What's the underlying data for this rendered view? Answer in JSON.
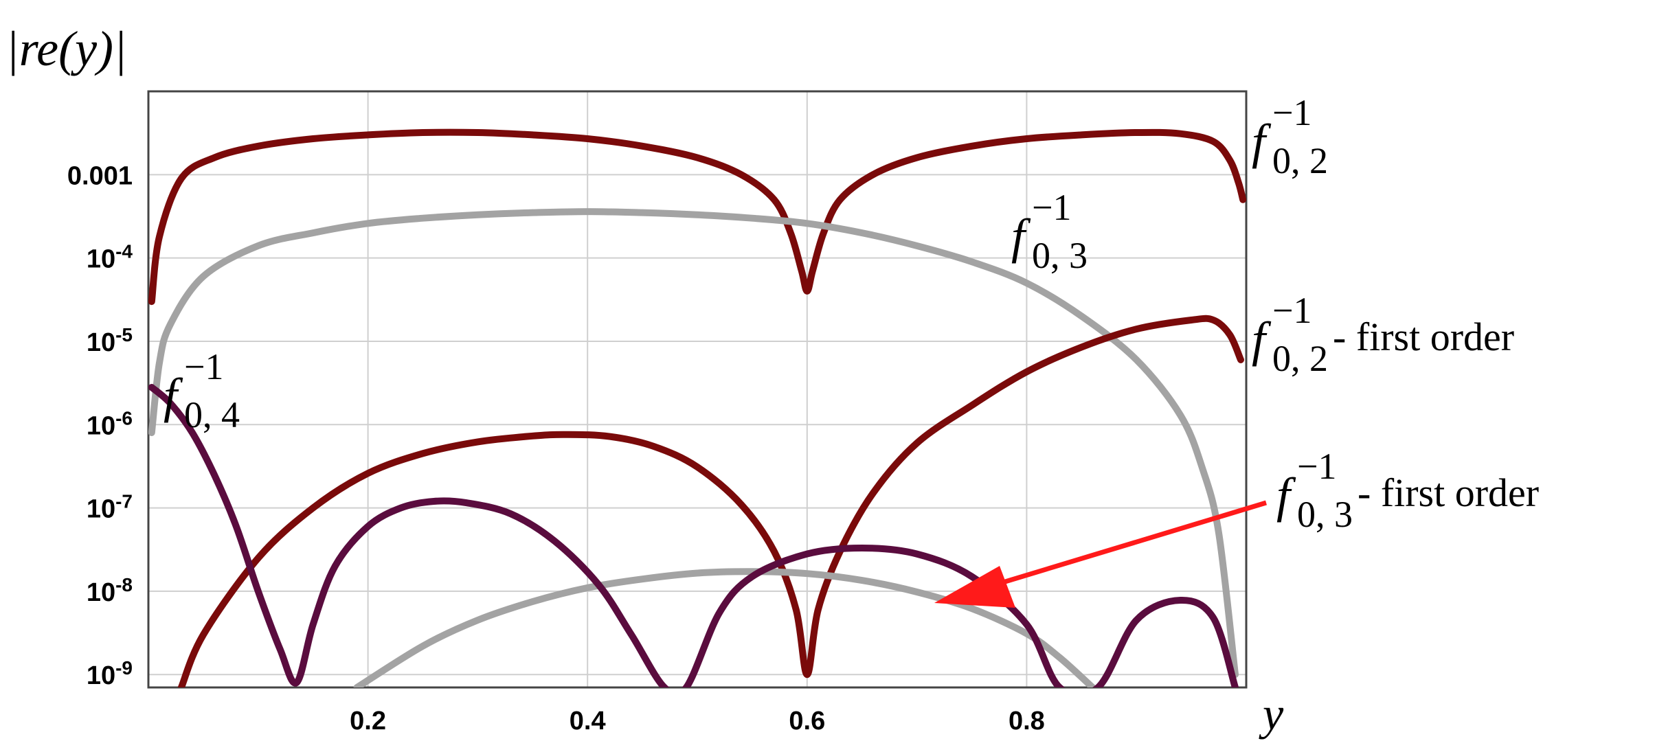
{
  "chart_data": {
    "type": "line",
    "ylabel": "|re(y)|",
    "xlabel": "y",
    "y_scale": "log",
    "xlim": [
      0.0,
      1.0
    ],
    "ylim": [
      7e-10,
      0.01
    ],
    "grid": true,
    "xticks": [
      {
        "value": 0.2,
        "label": "0.2"
      },
      {
        "value": 0.4,
        "label": "0.4"
      },
      {
        "value": 0.6,
        "label": "0.6"
      },
      {
        "value": 0.8,
        "label": "0.8"
      }
    ],
    "yticks": [
      {
        "value": 0.001,
        "label": "0.001"
      },
      {
        "value": 0.0001,
        "mant": "10",
        "exp": "-4"
      },
      {
        "value": 1e-05,
        "mant": "10",
        "exp": "-5"
      },
      {
        "value": 1e-06,
        "mant": "10",
        "exp": "-6"
      },
      {
        "value": 1e-07,
        "mant": "10",
        "exp": "-7"
      },
      {
        "value": 1e-08,
        "mant": "10",
        "exp": "-8"
      },
      {
        "value": 1e-09,
        "mant": "10",
        "exp": "-9"
      }
    ],
    "series": [
      {
        "color": "#7a0a0a",
        "label": {
          "base": "f",
          "sup": "−1",
          "sub": "0, 2",
          "suffix": ""
        },
        "points": [
          [
            0.003,
            3e-05
          ],
          [
            0.01,
            0.00018
          ],
          [
            0.03,
            0.0009
          ],
          [
            0.06,
            0.0016
          ],
          [
            0.1,
            0.0022
          ],
          [
            0.15,
            0.0027
          ],
          [
            0.2,
            0.003
          ],
          [
            0.25,
            0.0032
          ],
          [
            0.3,
            0.0032
          ],
          [
            0.35,
            0.003
          ],
          [
            0.4,
            0.0027
          ],
          [
            0.45,
            0.0022
          ],
          [
            0.5,
            0.0016
          ],
          [
            0.54,
            0.001
          ],
          [
            0.57,
            0.0005
          ],
          [
            0.585,
            0.0002
          ],
          [
            0.595,
            7e-05
          ],
          [
            0.6,
            4e-05
          ],
          [
            0.605,
            7e-05
          ],
          [
            0.615,
            0.0002
          ],
          [
            0.63,
            0.0005
          ],
          [
            0.66,
            0.001
          ],
          [
            0.7,
            0.0016
          ],
          [
            0.75,
            0.0022
          ],
          [
            0.8,
            0.0027
          ],
          [
            0.85,
            0.003
          ],
          [
            0.9,
            0.0032
          ],
          [
            0.94,
            0.0031
          ],
          [
            0.97,
            0.0025
          ],
          [
            0.985,
            0.0015
          ],
          [
            0.993,
            0.0008
          ],
          [
            0.997,
            0.0005
          ]
        ]
      },
      {
        "color": "#a3a3a3",
        "label": {
          "base": "f",
          "sup": "−1",
          "sub": "0, 3",
          "suffix": ""
        },
        "points": [
          [
            0.003,
            8e-07
          ],
          [
            0.01,
            5.5e-06
          ],
          [
            0.02,
            1.6e-05
          ],
          [
            0.05,
            6e-05
          ],
          [
            0.1,
            0.00014
          ],
          [
            0.15,
            0.0002
          ],
          [
            0.2,
            0.00026
          ],
          [
            0.25,
            0.0003
          ],
          [
            0.3,
            0.00033
          ],
          [
            0.35,
            0.00035
          ],
          [
            0.4,
            0.00036
          ],
          [
            0.45,
            0.00035
          ],
          [
            0.5,
            0.00033
          ],
          [
            0.55,
            0.0003
          ],
          [
            0.6,
            0.00026
          ],
          [
            0.65,
            0.0002
          ],
          [
            0.7,
            0.00014
          ],
          [
            0.75,
            9e-05
          ],
          [
            0.8,
            5e-05
          ],
          [
            0.85,
            2e-05
          ],
          [
            0.9,
            6e-06
          ],
          [
            0.94,
            1.3e-06
          ],
          [
            0.96,
            3e-07
          ],
          [
            0.975,
            5e-08
          ],
          [
            0.99,
            1e-09
          ]
        ]
      },
      {
        "color": "#7a0a0a",
        "label": {
          "base": "f",
          "sup": "−1",
          "sub": "0, 2",
          "suffix": " - first order"
        },
        "points": [
          [
            0.03,
            7e-10
          ],
          [
            0.05,
            3e-09
          ],
          [
            0.1,
            2.5e-08
          ],
          [
            0.15,
            1e-07
          ],
          [
            0.2,
            2.6e-07
          ],
          [
            0.25,
            4.5e-07
          ],
          [
            0.3,
            6.2e-07
          ],
          [
            0.35,
            7.3e-07
          ],
          [
            0.38,
            7.6e-07
          ],
          [
            0.42,
            7.2e-07
          ],
          [
            0.46,
            5.5e-07
          ],
          [
            0.5,
            3.1e-07
          ],
          [
            0.54,
            1.1e-07
          ],
          [
            0.57,
            3e-08
          ],
          [
            0.59,
            6e-09
          ],
          [
            0.6,
            1e-09
          ],
          [
            0.61,
            6e-09
          ],
          [
            0.63,
            3e-08
          ],
          [
            0.66,
            1.5e-07
          ],
          [
            0.7,
            6e-07
          ],
          [
            0.75,
            1.7e-06
          ],
          [
            0.8,
            4.3e-06
          ],
          [
            0.85,
            8.5e-06
          ],
          [
            0.9,
            1.4e-05
          ],
          [
            0.95,
            1.8e-05
          ],
          [
            0.97,
            1.8e-05
          ],
          [
            0.985,
            1.2e-05
          ],
          [
            0.995,
            6e-06
          ]
        ]
      },
      {
        "color": "#a3a3a3",
        "label": {
          "base": "f",
          "sup": "−1",
          "sub": "0, 3",
          "suffix": " - first order"
        },
        "points": [
          [
            0.19,
            7e-10
          ],
          [
            0.25,
            2.2e-09
          ],
          [
            0.3,
            4.5e-09
          ],
          [
            0.35,
            7.5e-09
          ],
          [
            0.4,
            1.1e-08
          ],
          [
            0.45,
            1.4e-08
          ],
          [
            0.5,
            1.65e-08
          ],
          [
            0.55,
            1.72e-08
          ],
          [
            0.6,
            1.63e-08
          ],
          [
            0.65,
            1.35e-08
          ],
          [
            0.7,
            9.8e-09
          ],
          [
            0.75,
            6.2e-09
          ],
          [
            0.8,
            3.1e-09
          ],
          [
            0.83,
            1.6e-09
          ],
          [
            0.86,
            7e-10
          ]
        ]
      },
      {
        "color": "#5a0c3e",
        "label": {
          "base": "f",
          "sup": "−1",
          "sub": "0, 4",
          "suffix": ""
        },
        "points": [
          [
            0.003,
            2.8e-06
          ],
          [
            0.02,
            1.8e-06
          ],
          [
            0.04,
            8e-07
          ],
          [
            0.06,
            2.5e-07
          ],
          [
            0.08,
            6e-08
          ],
          [
            0.1,
            1e-08
          ],
          [
            0.12,
            2e-09
          ],
          [
            0.135,
            8e-10
          ],
          [
            0.15,
            4e-09
          ],
          [
            0.17,
            2e-08
          ],
          [
            0.2,
            6e-08
          ],
          [
            0.23,
            1e-07
          ],
          [
            0.26,
            1.2e-07
          ],
          [
            0.29,
            1.15e-07
          ],
          [
            0.33,
            8.5e-08
          ],
          [
            0.37,
            4e-08
          ],
          [
            0.41,
            1.2e-08
          ],
          [
            0.44,
            3e-09
          ],
          [
            0.47,
            7e-10
          ],
          [
            0.49,
            7e-10
          ],
          [
            0.52,
            5.5e-09
          ],
          [
            0.55,
            1.5e-08
          ],
          [
            0.6,
            2.8e-08
          ],
          [
            0.65,
            3.3e-08
          ],
          [
            0.7,
            2.8e-08
          ],
          [
            0.75,
            1.5e-08
          ],
          [
            0.8,
            4e-09
          ],
          [
            0.83,
            7e-10
          ],
          [
            0.865,
            7e-10
          ],
          [
            0.9,
            4.5e-09
          ],
          [
            0.94,
            7.8e-09
          ],
          [
            0.97,
            4.8e-09
          ],
          [
            0.99,
            7e-10
          ]
        ]
      }
    ]
  }
}
